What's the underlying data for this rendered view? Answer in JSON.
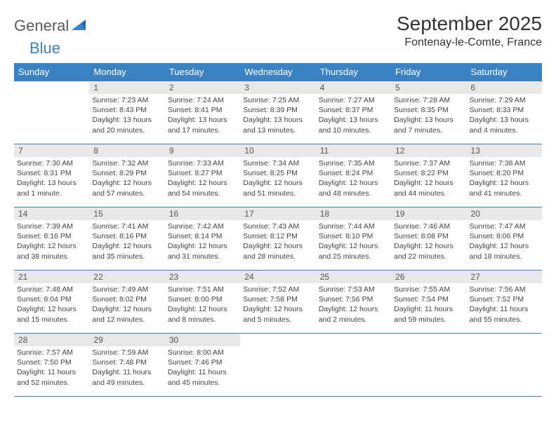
{
  "logo": {
    "part1": "General",
    "part2": "Blue"
  },
  "title": "September 2025",
  "location": "Fontenay-le-Comte, France",
  "colors": {
    "header_bg": "#3b82c4",
    "header_text": "#ffffff",
    "daynum_bg": "#e8e8e8",
    "border": "#3b82c4",
    "body_text": "#444444",
    "title_text": "#333333"
  },
  "weekdays": [
    "Sunday",
    "Monday",
    "Tuesday",
    "Wednesday",
    "Thursday",
    "Friday",
    "Saturday"
  ],
  "first_weekday_index": 1,
  "days": [
    {
      "n": 1,
      "sunrise": "7:23 AM",
      "sunset": "8:43 PM",
      "daylight": "13 hours and 20 minutes."
    },
    {
      "n": 2,
      "sunrise": "7:24 AM",
      "sunset": "8:41 PM",
      "daylight": "13 hours and 17 minutes."
    },
    {
      "n": 3,
      "sunrise": "7:25 AM",
      "sunset": "8:39 PM",
      "daylight": "13 hours and 13 minutes."
    },
    {
      "n": 4,
      "sunrise": "7:27 AM",
      "sunset": "8:37 PM",
      "daylight": "13 hours and 10 minutes."
    },
    {
      "n": 5,
      "sunrise": "7:28 AM",
      "sunset": "8:35 PM",
      "daylight": "13 hours and 7 minutes."
    },
    {
      "n": 6,
      "sunrise": "7:29 AM",
      "sunset": "8:33 PM",
      "daylight": "13 hours and 4 minutes."
    },
    {
      "n": 7,
      "sunrise": "7:30 AM",
      "sunset": "8:31 PM",
      "daylight": "13 hours and 1 minute."
    },
    {
      "n": 8,
      "sunrise": "7:32 AM",
      "sunset": "8:29 PM",
      "daylight": "12 hours and 57 minutes."
    },
    {
      "n": 9,
      "sunrise": "7:33 AM",
      "sunset": "8:27 PM",
      "daylight": "12 hours and 54 minutes."
    },
    {
      "n": 10,
      "sunrise": "7:34 AM",
      "sunset": "8:25 PM",
      "daylight": "12 hours and 51 minutes."
    },
    {
      "n": 11,
      "sunrise": "7:35 AM",
      "sunset": "8:24 PM",
      "daylight": "12 hours and 48 minutes."
    },
    {
      "n": 12,
      "sunrise": "7:37 AM",
      "sunset": "8:22 PM",
      "daylight": "12 hours and 44 minutes."
    },
    {
      "n": 13,
      "sunrise": "7:38 AM",
      "sunset": "8:20 PM",
      "daylight": "12 hours and 41 minutes."
    },
    {
      "n": 14,
      "sunrise": "7:39 AM",
      "sunset": "8:18 PM",
      "daylight": "12 hours and 38 minutes."
    },
    {
      "n": 15,
      "sunrise": "7:41 AM",
      "sunset": "8:16 PM",
      "daylight": "12 hours and 35 minutes."
    },
    {
      "n": 16,
      "sunrise": "7:42 AM",
      "sunset": "8:14 PM",
      "daylight": "12 hours and 31 minutes."
    },
    {
      "n": 17,
      "sunrise": "7:43 AM",
      "sunset": "8:12 PM",
      "daylight": "12 hours and 28 minutes."
    },
    {
      "n": 18,
      "sunrise": "7:44 AM",
      "sunset": "8:10 PM",
      "daylight": "12 hours and 25 minutes."
    },
    {
      "n": 19,
      "sunrise": "7:46 AM",
      "sunset": "8:08 PM",
      "daylight": "12 hours and 22 minutes."
    },
    {
      "n": 20,
      "sunrise": "7:47 AM",
      "sunset": "8:06 PM",
      "daylight": "12 hours and 18 minutes."
    },
    {
      "n": 21,
      "sunrise": "7:48 AM",
      "sunset": "8:04 PM",
      "daylight": "12 hours and 15 minutes."
    },
    {
      "n": 22,
      "sunrise": "7:49 AM",
      "sunset": "8:02 PM",
      "daylight": "12 hours and 12 minutes."
    },
    {
      "n": 23,
      "sunrise": "7:51 AM",
      "sunset": "8:00 PM",
      "daylight": "12 hours and 8 minutes."
    },
    {
      "n": 24,
      "sunrise": "7:52 AM",
      "sunset": "7:58 PM",
      "daylight": "12 hours and 5 minutes."
    },
    {
      "n": 25,
      "sunrise": "7:53 AM",
      "sunset": "7:56 PM",
      "daylight": "12 hours and 2 minutes."
    },
    {
      "n": 26,
      "sunrise": "7:55 AM",
      "sunset": "7:54 PM",
      "daylight": "11 hours and 59 minutes."
    },
    {
      "n": 27,
      "sunrise": "7:56 AM",
      "sunset": "7:52 PM",
      "daylight": "11 hours and 55 minutes."
    },
    {
      "n": 28,
      "sunrise": "7:57 AM",
      "sunset": "7:50 PM",
      "daylight": "11 hours and 52 minutes."
    },
    {
      "n": 29,
      "sunrise": "7:59 AM",
      "sunset": "7:48 PM",
      "daylight": "11 hours and 49 minutes."
    },
    {
      "n": 30,
      "sunrise": "8:00 AM",
      "sunset": "7:46 PM",
      "daylight": "11 hours and 45 minutes."
    }
  ],
  "labels": {
    "sunrise": "Sunrise:",
    "sunset": "Sunset:",
    "daylight": "Daylight:"
  }
}
